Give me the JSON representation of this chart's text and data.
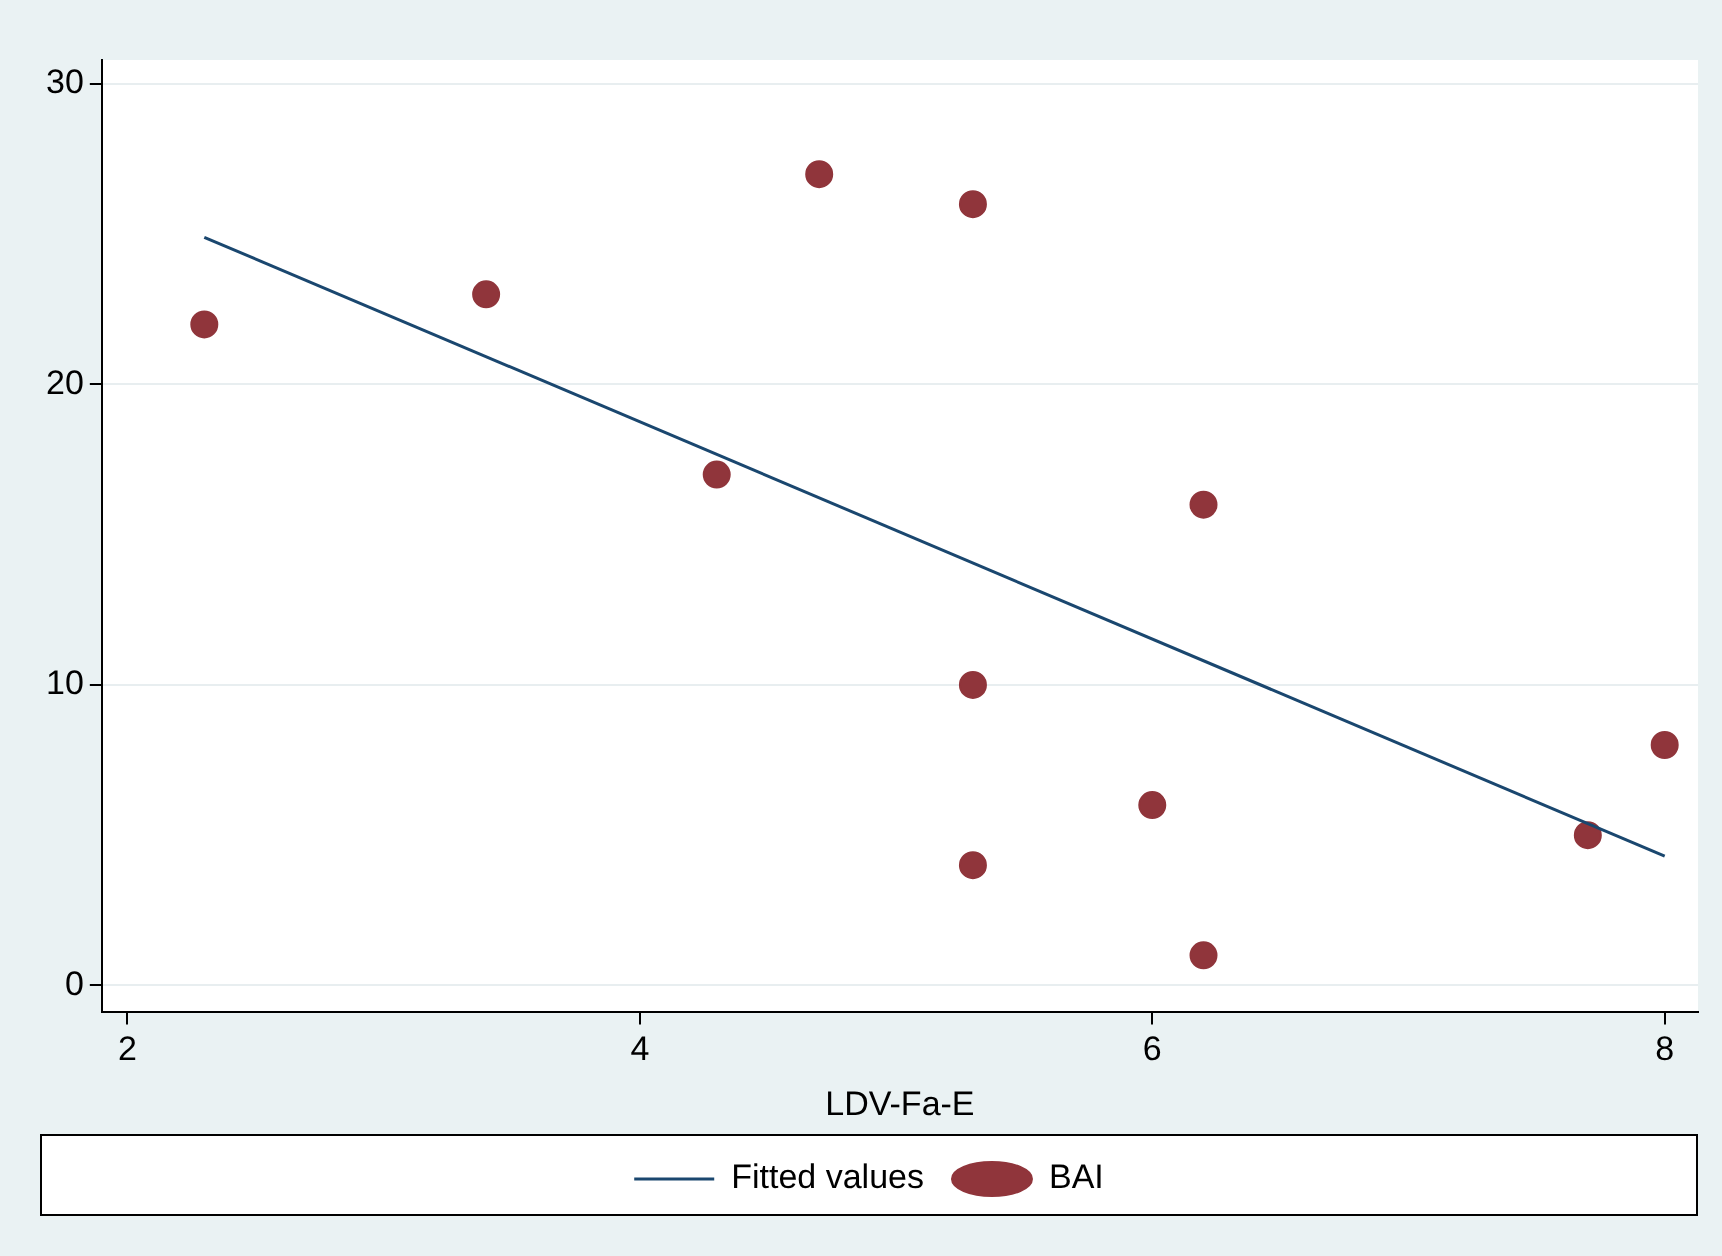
{
  "chart_data": {
    "type": "scatter",
    "xlabel": "LDV-Fa-E",
    "xlim": [
      1.9,
      8.13
    ],
    "ylim": [
      -0.9,
      30.8
    ],
    "xticks": [
      2,
      4,
      6,
      8
    ],
    "yticks": [
      0,
      10,
      20,
      30
    ],
    "grid": "y",
    "legend": "bottom",
    "series": [
      {
        "name": "Fitted values",
        "type": "line",
        "marker": "none",
        "color": "#1a476f",
        "x": [
          2.3,
          8
        ],
        "values": [
          24.9,
          4.3
        ]
      },
      {
        "name": "BAI",
        "marker": "circle",
        "color": "#90353b",
        "x": [
          2.3,
          3.4,
          4.3,
          4.7,
          5.3,
          5.3,
          5.3,
          6.0,
          6.2,
          6.2,
          7.7,
          8.0
        ],
        "values": [
          22,
          23,
          17,
          27,
          26,
          10,
          4,
          6,
          16,
          1,
          5,
          8
        ]
      }
    ]
  }
}
